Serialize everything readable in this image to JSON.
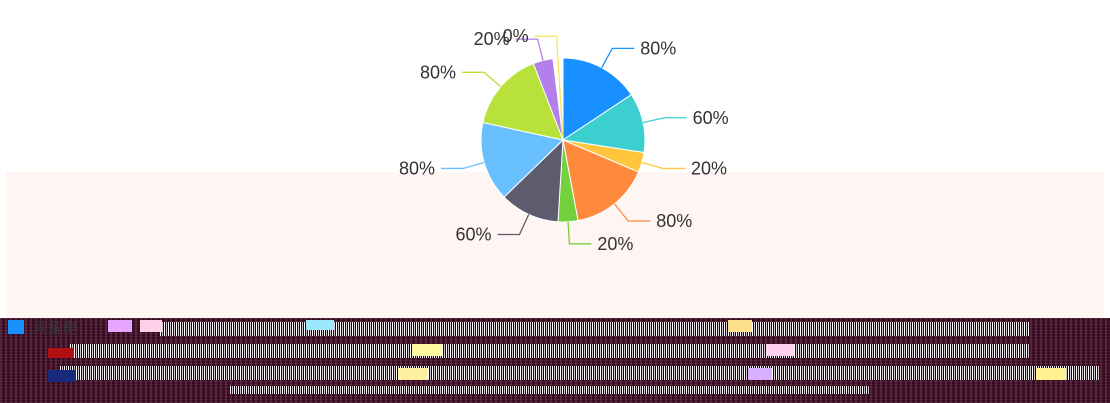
{
  "chart_data": {
    "type": "pie",
    "slices": [
      {
        "label": "80%",
        "value": 80,
        "color": "#1890ff"
      },
      {
        "label": "60%",
        "value": 60,
        "color": "#3ccfcf"
      },
      {
        "label": "20%",
        "value": 20,
        "color": "#ffc53d"
      },
      {
        "label": "80%",
        "value": 80,
        "color": "#ff8a3d"
      },
      {
        "label": "20%",
        "value": 20,
        "color": "#73d13d"
      },
      {
        "label": "60%",
        "value": 60,
        "color": "#5c5c6e"
      },
      {
        "label": "80%",
        "value": 80,
        "color": "#69c0ff"
      },
      {
        "label": "80%",
        "value": 80,
        "color": "#b8e23a"
      },
      {
        "label": "20%",
        "value": 20,
        "color": "#b37feb"
      },
      {
        "label": "0%",
        "value": 0,
        "color": "#f5e663"
      }
    ]
  },
  "legend": {
    "first_label": "具备电",
    "first_color": "#1890ff"
  }
}
